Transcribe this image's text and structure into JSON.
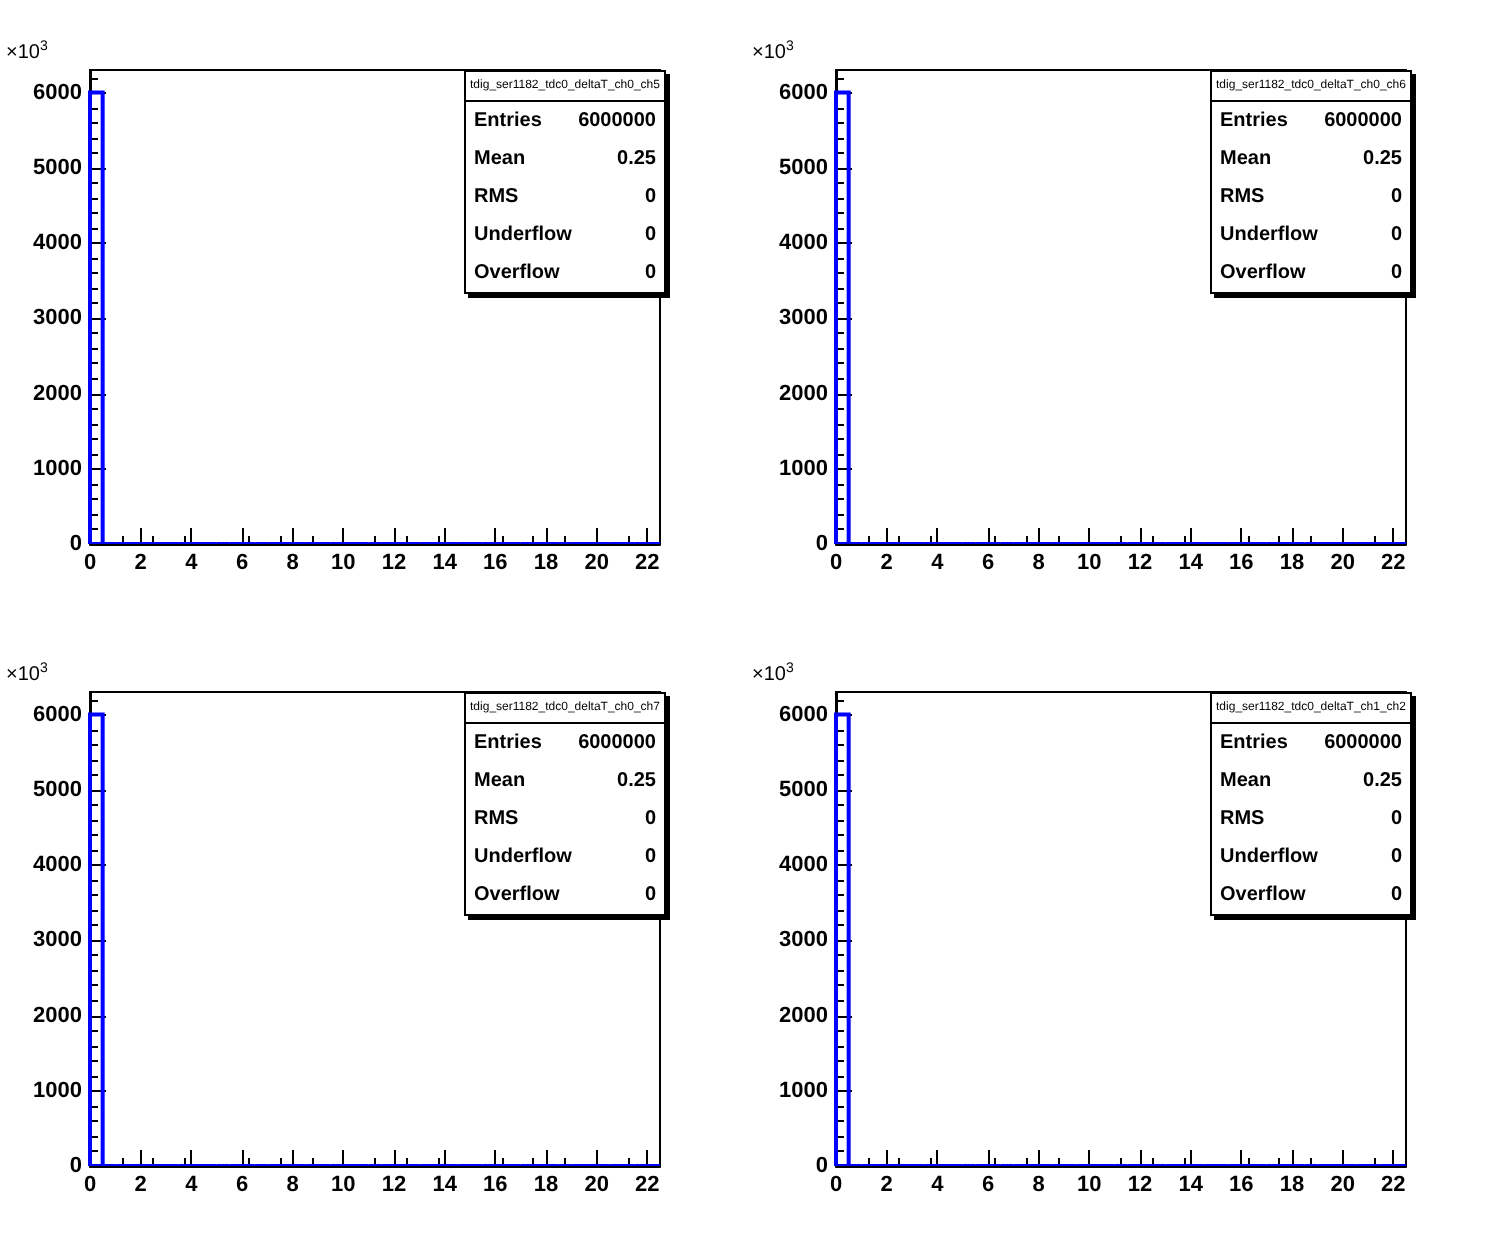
{
  "chart_data": [
    {
      "type": "histogram",
      "title": "tdig_ser1182_tdc0_deltaT_ch0_ch5",
      "ylabel": "×10$^{3}$",
      "bins": [
        0,
        0.5,
        1,
        1.5,
        2,
        2.5,
        3,
        3.5,
        4,
        4.5,
        5,
        5.5,
        6,
        6.5,
        7,
        7.5,
        8,
        8.5,
        9,
        9.5,
        10,
        10.5,
        11,
        11.5,
        12,
        12.5,
        13,
        13.5,
        14,
        14.5,
        15,
        15.5,
        16,
        16.5,
        17,
        17.5,
        18,
        18.5,
        19,
        19.5,
        20,
        20.5,
        21,
        21.5,
        22,
        22.5
      ],
      "values": [
        6000,
        0,
        0,
        0,
        0,
        0,
        0,
        0,
        0,
        0,
        0,
        0,
        0,
        0,
        0,
        0,
        0,
        0,
        0,
        0,
        0,
        0,
        0,
        0,
        0,
        0,
        0,
        0,
        0,
        0,
        0,
        0,
        0,
        0,
        0,
        0,
        0,
        0,
        0,
        0,
        0,
        0,
        0,
        0,
        0
      ],
      "color": "#0000ff",
      "xlim": [
        0,
        22.5
      ],
      "xticks": [
        0,
        2,
        4,
        6,
        8,
        10,
        12,
        14,
        16,
        18,
        20,
        22
      ],
      "ylim": [
        0,
        6300
      ],
      "yticks": [
        0,
        1000,
        2000,
        3000,
        4000,
        5000,
        6000
      ],
      "grid": false,
      "annotations": [
        "Entries",
        "6000000",
        "Mean",
        "0.25",
        "RMS",
        "0",
        "Underflow",
        "0",
        "Overflow",
        "0"
      ]
    },
    {
      "type": "histogram",
      "title": "tdig_ser1182_tdc0_deltaT_ch0_ch6",
      "ylabel": "×10$^{3}$",
      "bins": [
        0,
        0.5,
        1,
        1.5,
        2,
        2.5,
        3,
        3.5,
        4,
        4.5,
        5,
        5.5,
        6,
        6.5,
        7,
        7.5,
        8,
        8.5,
        9,
        9.5,
        10,
        10.5,
        11,
        11.5,
        12,
        12.5,
        13,
        13.5,
        14,
        14.5,
        15,
        15.5,
        16,
        16.5,
        17,
        17.5,
        18,
        18.5,
        19,
        19.5,
        20,
        20.5,
        21,
        21.5,
        22,
        22.5
      ],
      "values": [
        6000,
        0,
        0,
        0,
        0,
        0,
        0,
        0,
        0,
        0,
        0,
        0,
        0,
        0,
        0,
        0,
        0,
        0,
        0,
        0,
        0,
        0,
        0,
        0,
        0,
        0,
        0,
        0,
        0,
        0,
        0,
        0,
        0,
        0,
        0,
        0,
        0,
        0,
        0,
        0,
        0,
        0,
        0,
        0,
        0
      ],
      "color": "#0000ff",
      "xlim": [
        0,
        22.5
      ],
      "xticks": [
        0,
        2,
        4,
        6,
        8,
        10,
        12,
        14,
        16,
        18,
        20,
        22
      ],
      "ylim": [
        0,
        6300
      ],
      "yticks": [
        0,
        1000,
        2000,
        3000,
        4000,
        5000,
        6000
      ],
      "grid": false,
      "annotations": [
        "Entries",
        "6000000",
        "Mean",
        "0.25",
        "RMS",
        "0",
        "Underflow",
        "0",
        "Overflow",
        "0"
      ]
    },
    {
      "type": "histogram",
      "title": "tdig_ser1182_tdc0_deltaT_ch0_ch7",
      "ylabel": "×10$^{3}$",
      "bins": [
        0,
        0.5,
        1,
        1.5,
        2,
        2.5,
        3,
        3.5,
        4,
        4.5,
        5,
        5.5,
        6,
        6.5,
        7,
        7.5,
        8,
        8.5,
        9,
        9.5,
        10,
        10.5,
        11,
        11.5,
        12,
        12.5,
        13,
        13.5,
        14,
        14.5,
        15,
        15.5,
        16,
        16.5,
        17,
        17.5,
        18,
        18.5,
        19,
        19.5,
        20,
        20.5,
        21,
        21.5,
        22,
        22.5
      ],
      "values": [
        6000,
        0,
        0,
        0,
        0,
        0,
        0,
        0,
        0,
        0,
        0,
        0,
        0,
        0,
        0,
        0,
        0,
        0,
        0,
        0,
        0,
        0,
        0,
        0,
        0,
        0,
        0,
        0,
        0,
        0,
        0,
        0,
        0,
        0,
        0,
        0,
        0,
        0,
        0,
        0,
        0,
        0,
        0,
        0,
        0
      ],
      "color": "#0000ff",
      "xlim": [
        0,
        22.5
      ],
      "xticks": [
        0,
        2,
        4,
        6,
        8,
        10,
        12,
        14,
        16,
        18,
        20,
        22
      ],
      "ylim": [
        0,
        6300
      ],
      "yticks": [
        0,
        1000,
        2000,
        3000,
        4000,
        5000,
        6000
      ],
      "grid": false,
      "annotations": [
        "Entries",
        "6000000",
        "Mean",
        "0.25",
        "RMS",
        "0",
        "Underflow",
        "0",
        "Overflow",
        "0"
      ]
    },
    {
      "type": "histogram",
      "title": "tdig_ser1182_tdc0_deltaT_ch1_ch2",
      "ylabel": "×10$^{3}$",
      "bins": [
        0,
        0.5,
        1,
        1.5,
        2,
        2.5,
        3,
        3.5,
        4,
        4.5,
        5,
        5.5,
        6,
        6.5,
        7,
        7.5,
        8,
        8.5,
        9,
        9.5,
        10,
        10.5,
        11,
        11.5,
        12,
        12.5,
        13,
        13.5,
        14,
        14.5,
        15,
        15.5,
        16,
        16.5,
        17,
        17.5,
        18,
        18.5,
        19,
        19.5,
        20,
        20.5,
        21,
        21.5,
        22,
        22.5
      ],
      "values": [
        6000,
        0,
        0,
        0,
        0,
        0,
        0,
        0,
        0,
        0,
        0,
        0,
        0,
        0,
        0,
        0,
        0,
        0,
        0,
        0,
        0,
        0,
        0,
        0,
        0,
        0,
        0,
        0,
        0,
        0,
        0,
        0,
        0,
        0,
        0,
        0,
        0,
        0,
        0,
        0,
        0,
        0,
        0,
        0,
        0
      ],
      "color": "#0000ff",
      "xlim": [
        0,
        22.5
      ],
      "xticks": [
        0,
        2,
        4,
        6,
        8,
        10,
        12,
        14,
        16,
        18,
        20,
        22
      ],
      "ylim": [
        0,
        6300
      ],
      "yticks": [
        0,
        1000,
        2000,
        3000,
        4000,
        5000,
        6000
      ],
      "grid": false,
      "annotations": [
        "Entries",
        "6000000",
        "Mean",
        "0.25",
        "RMS",
        "0",
        "Underflow",
        "0",
        "Overflow",
        "0"
      ]
    }
  ]
}
